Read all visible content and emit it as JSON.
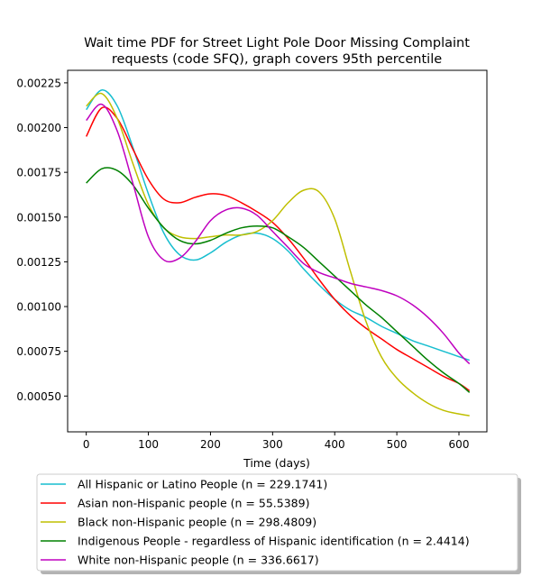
{
  "chart_data": {
    "type": "line",
    "title_lines": [
      "Wait time PDF for Street Light Pole Door Missing Complaint",
      "requests (code SFQ), graph covers 95th percentile"
    ],
    "xlabel": "Time (days)",
    "ylabel": "",
    "xlim": [
      -30,
      645
    ],
    "ylim": [
      0.0003,
      0.00232
    ],
    "x_ticks": [
      0,
      100,
      200,
      300,
      400,
      500,
      600
    ],
    "y_ticks": [
      0.0005,
      0.00075,
      0.001,
      0.00125,
      0.0015,
      0.00175,
      0.002,
      0.00225
    ],
    "y_tick_labels": [
      "0.00050",
      "0.00075",
      "0.00100",
      "0.00125",
      "0.00150",
      "0.00175",
      "0.00200",
      "0.00225"
    ],
    "grid": false,
    "legend_position": "below",
    "series": [
      {
        "name": "All Hispanic or Latino People (n = 229.1741)",
        "color": "#17becf",
        "x": [
          0,
          25,
          50,
          75,
          100,
          125,
          150,
          175,
          200,
          225,
          250,
          275,
          300,
          325,
          350,
          375,
          400,
          425,
          450,
          475,
          500,
          525,
          550,
          575,
          600,
          617
        ],
        "y": [
          0.0021,
          0.00221,
          0.00212,
          0.00189,
          0.00163,
          0.00141,
          0.00129,
          0.00126,
          0.0013,
          0.00136,
          0.0014,
          0.00141,
          0.00138,
          0.00131,
          0.00121,
          0.00112,
          0.00104,
          0.00098,
          0.00094,
          0.00089,
          0.00085,
          0.00081,
          0.00078,
          0.00075,
          0.00072,
          0.0007
        ]
      },
      {
        "name": "Asian non-Hispanic people (n = 55.5389)",
        "color": "#ff0000",
        "x": [
          0,
          25,
          50,
          75,
          100,
          125,
          150,
          175,
          200,
          225,
          250,
          275,
          300,
          325,
          350,
          375,
          400,
          425,
          450,
          475,
          500,
          525,
          550,
          575,
          600,
          617
        ],
        "y": [
          0.00195,
          0.00211,
          0.00205,
          0.00188,
          0.00171,
          0.0016,
          0.00158,
          0.00161,
          0.00163,
          0.00162,
          0.00158,
          0.00153,
          0.00147,
          0.00138,
          0.00127,
          0.00115,
          0.00104,
          0.00095,
          0.00088,
          0.00082,
          0.00076,
          0.00071,
          0.00066,
          0.00061,
          0.00057,
          0.00053
        ]
      },
      {
        "name": "Black non-Hispanic people (n = 298.4809)",
        "color": "#bfbf00",
        "x": [
          0,
          25,
          50,
          75,
          100,
          125,
          150,
          175,
          200,
          225,
          250,
          275,
          300,
          325,
          350,
          375,
          400,
          425,
          450,
          475,
          500,
          525,
          550,
          575,
          600,
          617
        ],
        "y": [
          0.00212,
          0.00219,
          0.00205,
          0.0018,
          0.00157,
          0.00144,
          0.00139,
          0.00138,
          0.00139,
          0.0014,
          0.0014,
          0.00142,
          0.00148,
          0.00158,
          0.00165,
          0.00164,
          0.00149,
          0.0012,
          0.00092,
          0.00072,
          0.0006,
          0.00052,
          0.00046,
          0.00042,
          0.0004,
          0.00039
        ]
      },
      {
        "name": "Indigenous People - regardless of Hispanic identification (n = 2.4414)",
        "color": "#008000",
        "x": [
          0,
          25,
          50,
          75,
          100,
          125,
          150,
          175,
          200,
          225,
          250,
          275,
          300,
          325,
          350,
          375,
          400,
          425,
          450,
          475,
          500,
          525,
          550,
          575,
          600,
          617
        ],
        "y": [
          0.00169,
          0.00177,
          0.00176,
          0.00168,
          0.00155,
          0.00144,
          0.00137,
          0.00135,
          0.00137,
          0.00141,
          0.00144,
          0.00145,
          0.00144,
          0.00139,
          0.00133,
          0.00125,
          0.00117,
          0.00109,
          0.00101,
          0.00094,
          0.00086,
          0.00078,
          0.0007,
          0.00063,
          0.00057,
          0.00052
        ]
      },
      {
        "name": "White non-Hispanic people (n = 336.6617)",
        "color": "#bf00bf",
        "x": [
          0,
          25,
          50,
          75,
          100,
          125,
          150,
          175,
          200,
          225,
          250,
          275,
          300,
          325,
          350,
          375,
          400,
          425,
          450,
          475,
          500,
          525,
          550,
          575,
          600,
          617
        ],
        "y": [
          0.00204,
          0.00213,
          0.00198,
          0.00169,
          0.00139,
          0.00126,
          0.00127,
          0.00136,
          0.00148,
          0.00154,
          0.00155,
          0.00151,
          0.00142,
          0.00133,
          0.00124,
          0.00119,
          0.00116,
          0.00113,
          0.00111,
          0.00109,
          0.00106,
          0.00101,
          0.00094,
          0.00085,
          0.00074,
          0.00068
        ]
      }
    ]
  }
}
